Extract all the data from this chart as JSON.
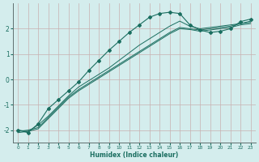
{
  "xlabel": "Humidex (Indice chaleur)",
  "ylabel": "",
  "background_color": "#d4eded",
  "grid_color": "#c8b0b0",
  "line_color": "#1a6e60",
  "xlim": [
    -0.5,
    23.5
  ],
  "ylim": [
    -2.5,
    3.0
  ],
  "yticks": [
    -2,
    -1,
    0,
    1,
    2
  ],
  "xticks": [
    0,
    1,
    2,
    3,
    4,
    5,
    6,
    7,
    8,
    9,
    10,
    11,
    12,
    13,
    14,
    15,
    16,
    17,
    18,
    19,
    20,
    21,
    22,
    23
  ],
  "line1_x": [
    0,
    1,
    2,
    3,
    4,
    5,
    6,
    7,
    8,
    9,
    10,
    11,
    12,
    13,
    14,
    15,
    16,
    17,
    18,
    19,
    20,
    21,
    22,
    23
  ],
  "line1_y": [
    -2.0,
    -2.05,
    -1.8,
    -1.45,
    -1.05,
    -0.65,
    -0.3,
    -0.05,
    0.2,
    0.45,
    0.75,
    1.05,
    1.35,
    1.6,
    1.85,
    2.1,
    2.3,
    2.1,
    2.0,
    2.05,
    2.1,
    2.15,
    2.2,
    2.3
  ],
  "line2_x": [
    0,
    1,
    2,
    3,
    4,
    5,
    6,
    7,
    8,
    9,
    10,
    11,
    12,
    13,
    14,
    15,
    16,
    17,
    18,
    19,
    20,
    21,
    22,
    23
  ],
  "line2_y": [
    -2.05,
    -2.0,
    -1.9,
    -1.5,
    -1.1,
    -0.7,
    -0.4,
    -0.15,
    0.1,
    0.35,
    0.6,
    0.85,
    1.1,
    1.35,
    1.6,
    1.85,
    2.05,
    2.0,
    1.95,
    2.0,
    2.05,
    2.1,
    2.2,
    2.25
  ],
  "line3_x": [
    0,
    1,
    2,
    3,
    4,
    5,
    6,
    7,
    8,
    9,
    10,
    11,
    12,
    13,
    14,
    15,
    16,
    17,
    18,
    19,
    20,
    21,
    22,
    23
  ],
  "line3_y": [
    -2.1,
    -2.05,
    -1.95,
    -1.55,
    -1.15,
    -0.75,
    -0.45,
    -0.2,
    0.05,
    0.3,
    0.55,
    0.8,
    1.05,
    1.3,
    1.55,
    1.8,
    2.0,
    1.97,
    1.9,
    1.95,
    2.0,
    2.05,
    2.15,
    2.2
  ],
  "marker_line_x": [
    0,
    1,
    2,
    3,
    4,
    5,
    6,
    7,
    8,
    9,
    10,
    11,
    12,
    13,
    14,
    15,
    16,
    17,
    18,
    19,
    20,
    21,
    22,
    23
  ],
  "marker_line_y": [
    -2.0,
    -2.1,
    -1.75,
    -1.15,
    -0.8,
    -0.45,
    -0.1,
    0.35,
    0.75,
    1.15,
    1.5,
    1.85,
    2.15,
    2.45,
    2.6,
    2.65,
    2.6,
    2.15,
    1.95,
    1.85,
    1.9,
    2.0,
    2.28,
    2.38
  ]
}
